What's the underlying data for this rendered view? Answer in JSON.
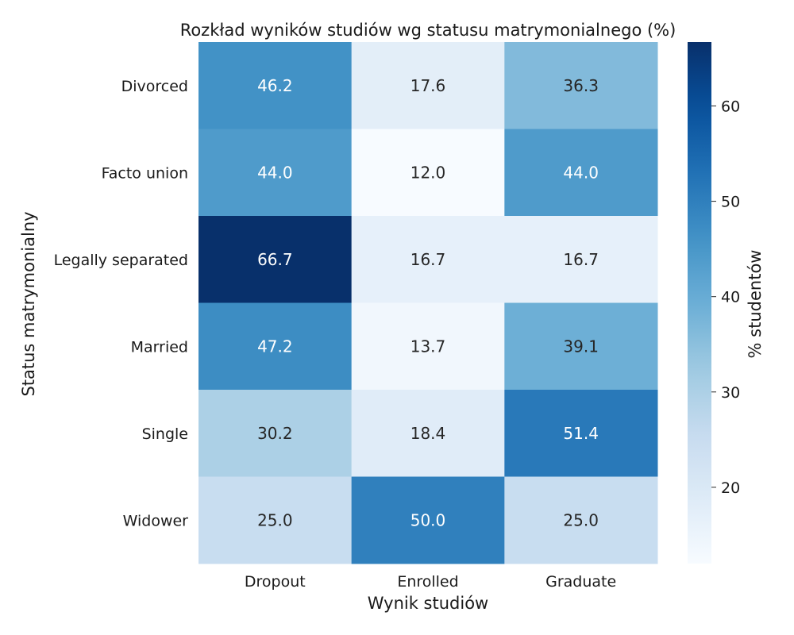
{
  "chart_data": {
    "type": "heatmap",
    "title": "Rozkład wyników studiów wg statusu matrymonialnego (%)",
    "xlabel": "Wynik studiów",
    "ylabel": "Status matrymonialny",
    "x_categories": [
      "Dropout",
      "Enrolled",
      "Graduate"
    ],
    "y_categories": [
      "Divorced",
      "Facto union",
      "Legally separated",
      "Married",
      "Single",
      "Widower"
    ],
    "values": [
      [
        46.2,
        17.6,
        36.3
      ],
      [
        44.0,
        12.0,
        44.0
      ],
      [
        66.7,
        16.7,
        16.7
      ],
      [
        47.2,
        13.7,
        39.1
      ],
      [
        30.2,
        18.4,
        51.4
      ],
      [
        25.0,
        50.0,
        25.0
      ]
    ],
    "value_format": "0.0",
    "colormap": "Blues",
    "colorbar": {
      "label": "% studentów",
      "min": 12.0,
      "max": 66.7,
      "ticks": [
        20,
        30,
        40,
        50,
        60
      ]
    },
    "grid": false
  }
}
